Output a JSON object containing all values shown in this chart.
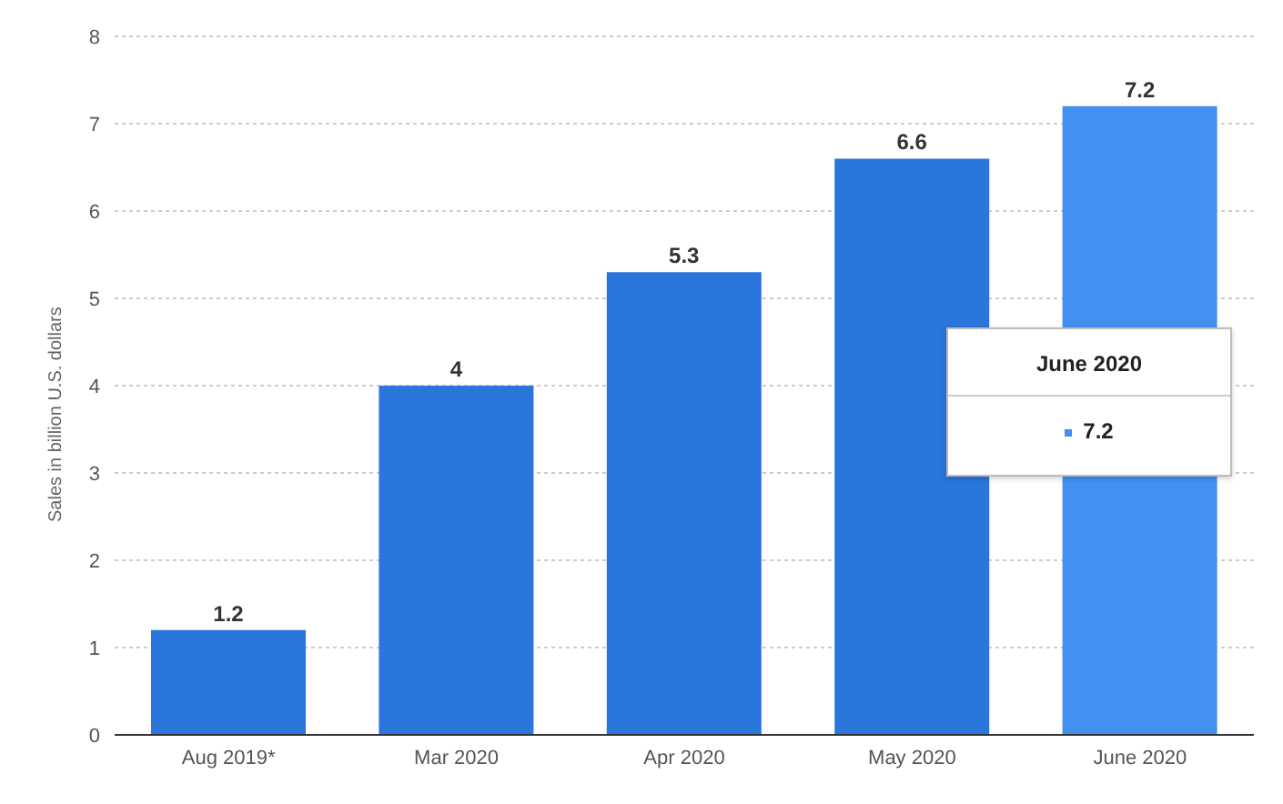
{
  "chart_data": {
    "type": "bar",
    "ylabel": "Sales in billion U.S. dollars",
    "categories": [
      "Aug 2019*",
      "Mar 2020",
      "Apr 2020",
      "May 2020",
      "June 2020"
    ],
    "values": [
      1.2,
      4,
      5.3,
      6.6,
      7.2
    ],
    "colors": [
      "#2a76dd",
      "#2a76dd",
      "#2a76dd",
      "#2a76dd",
      "#4190f0"
    ],
    "ylim": [
      0,
      8
    ],
    "yticks": [
      0,
      1,
      2,
      3,
      4,
      5,
      6,
      7,
      8
    ],
    "grid": "y",
    "data_labels": true,
    "annotations": [
      "June 2020",
      "7.2"
    ]
  }
}
